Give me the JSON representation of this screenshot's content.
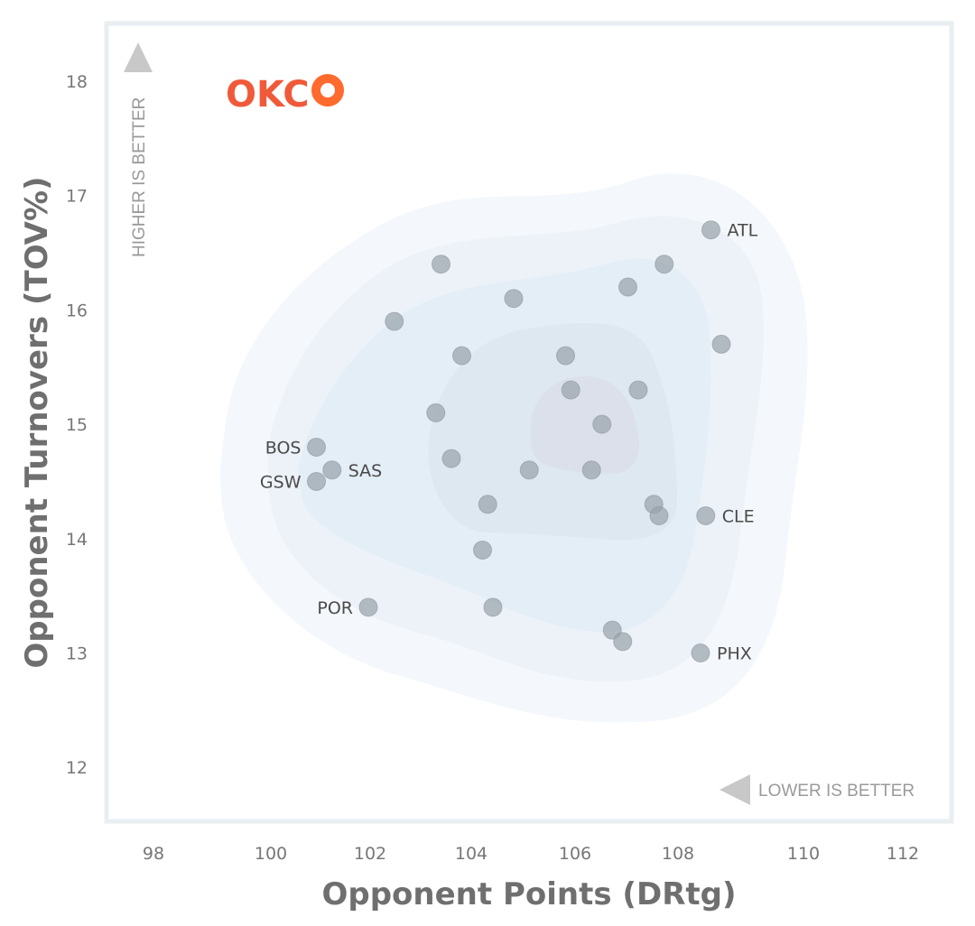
{
  "chart_data": {
    "type": "scatter",
    "title": "",
    "xlabel": "Opponent Points (DRtg)",
    "ylabel": "Opponent Turnovers (TOV%)",
    "xlim": [
      97.2,
      112.5
    ],
    "ylim": [
      11.6,
      18.5
    ],
    "x_ticks": [
      98,
      100,
      102,
      104,
      106,
      108,
      110,
      112
    ],
    "y_ticks": [
      12,
      13,
      14,
      15,
      16,
      17,
      18
    ],
    "grid": false,
    "annotations": {
      "y_direction": "HIGHER IS BETTER",
      "x_direction": "LOWER IS BETTER"
    },
    "highlight": {
      "label": "OKC",
      "x": 101.2,
      "y": 17.9,
      "color": "#f05a3a",
      "marker_color": "#ff6a2f"
    },
    "points": [
      {
        "label": "ATL",
        "x": 108.6,
        "y": 16.7
      },
      {
        "label": "",
        "x": 107.7,
        "y": 16.4
      },
      {
        "label": "",
        "x": 103.4,
        "y": 16.4
      },
      {
        "label": "",
        "x": 107.0,
        "y": 16.2
      },
      {
        "label": "",
        "x": 104.8,
        "y": 16.1
      },
      {
        "label": "",
        "x": 102.5,
        "y": 15.9
      },
      {
        "label": "",
        "x": 108.8,
        "y": 15.7
      },
      {
        "label": "",
        "x": 103.8,
        "y": 15.6
      },
      {
        "label": "",
        "x": 105.8,
        "y": 15.6
      },
      {
        "label": "",
        "x": 105.9,
        "y": 15.3
      },
      {
        "label": "",
        "x": 107.2,
        "y": 15.3
      },
      {
        "label": "",
        "x": 103.3,
        "y": 15.1
      },
      {
        "label": "",
        "x": 106.5,
        "y": 15.0
      },
      {
        "label": "BOS",
        "x": 101.0,
        "y": 14.8
      },
      {
        "label": "",
        "x": 103.6,
        "y": 14.7
      },
      {
        "label": "SAS",
        "x": 101.3,
        "y": 14.6
      },
      {
        "label": "",
        "x": 105.1,
        "y": 14.6
      },
      {
        "label": "",
        "x": 106.3,
        "y": 14.6
      },
      {
        "label": "GSW",
        "x": 101.0,
        "y": 14.5
      },
      {
        "label": "",
        "x": 104.3,
        "y": 14.3
      },
      {
        "label": "",
        "x": 107.5,
        "y": 14.3
      },
      {
        "label": "",
        "x": 107.6,
        "y": 14.2
      },
      {
        "label": "CLE",
        "x": 108.5,
        "y": 14.2
      },
      {
        "label": "",
        "x": 104.2,
        "y": 13.9
      },
      {
        "label": "POR",
        "x": 102.0,
        "y": 13.4
      },
      {
        "label": "",
        "x": 104.4,
        "y": 13.4
      },
      {
        "label": "",
        "x": 106.7,
        "y": 13.2
      },
      {
        "label": "",
        "x": 106.9,
        "y": 13.1
      },
      {
        "label": "PHX",
        "x": 108.4,
        "y": 13.0
      }
    ]
  },
  "colors": {
    "frame": "#e9eef1",
    "point_fill": "#9aa3ac",
    "point_stroke": "#8c959e",
    "density_levels": [
      "#f4f7fb",
      "#ecf2f8",
      "#e3eef6",
      "#dde8f1",
      "#dce0ea"
    ],
    "hint_arrow": "#c8c8c8"
  }
}
